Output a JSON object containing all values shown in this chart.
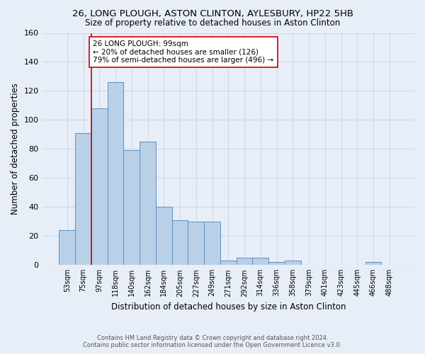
{
  "title": "26, LONG PLOUGH, ASTON CLINTON, AYLESBURY, HP22 5HB",
  "subtitle": "Size of property relative to detached houses in Aston Clinton",
  "xlabel": "Distribution of detached houses by size in Aston Clinton",
  "ylabel": "Number of detached properties",
  "footer_line1": "Contains HM Land Registry data © Crown copyright and database right 2024.",
  "footer_line2": "Contains public sector information licensed under the Open Government Licence v3.0.",
  "bar_labels": [
    "53sqm",
    "75sqm",
    "97sqm",
    "118sqm",
    "140sqm",
    "162sqm",
    "184sqm",
    "205sqm",
    "227sqm",
    "249sqm",
    "271sqm",
    "292sqm",
    "314sqm",
    "336sqm",
    "358sqm",
    "379sqm",
    "401sqm",
    "423sqm",
    "445sqm",
    "466sqm",
    "488sqm"
  ],
  "bar_values": [
    24,
    91,
    108,
    126,
    79,
    85,
    40,
    31,
    30,
    30,
    3,
    5,
    5,
    2,
    3,
    0,
    0,
    0,
    0,
    2,
    0
  ],
  "bar_color": "#b8d0e8",
  "bar_edge_color": "#6090c0",
  "background_color": "#e8eef8",
  "grid_color": "#d0d8e8",
  "vline_x_index": 2,
  "vline_color": "#cc0000",
  "annotation_text": "26 LONG PLOUGH: 99sqm\n← 20% of detached houses are smaller (126)\n79% of semi-detached houses are larger (496) →",
  "annotation_box_color": "#ffffff",
  "annotation_border_color": "#cc0000",
  "ylim": [
    0,
    160
  ],
  "yticks": [
    0,
    20,
    40,
    60,
    80,
    100,
    120,
    140,
    160
  ]
}
